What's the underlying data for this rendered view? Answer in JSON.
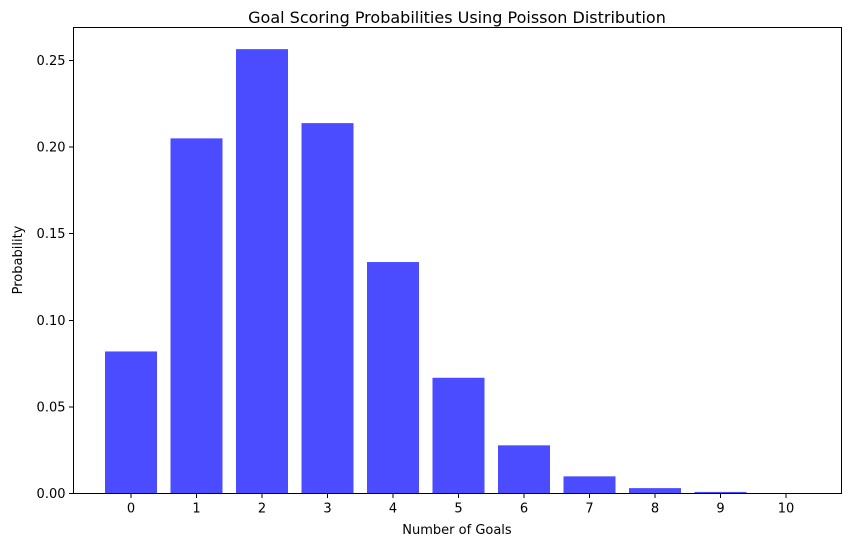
{
  "chart_data": {
    "type": "bar",
    "title": "Goal Scoring Probabilities Using Poisson Distribution",
    "xlabel": "Number of Goals",
    "ylabel": "Probability",
    "categories": [
      "0",
      "1",
      "2",
      "3",
      "4",
      "5",
      "6",
      "7",
      "8",
      "9",
      "10"
    ],
    "values": [
      0.082,
      0.205,
      0.2565,
      0.2138,
      0.1336,
      0.0668,
      0.0278,
      0.0099,
      0.0031,
      0.0009,
      0.0002
    ],
    "ylim": [
      0,
      0.269
    ],
    "yticks": [
      "0.00",
      "0.05",
      "0.10",
      "0.15",
      "0.20",
      "0.25"
    ],
    "grid": false,
    "bar_color": "#4b4bff"
  }
}
